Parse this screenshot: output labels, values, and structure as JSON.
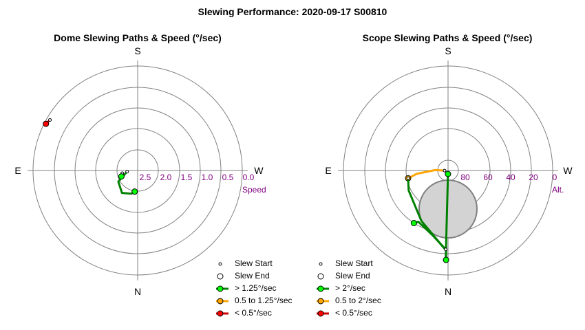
{
  "title": "Slewing Performance: 2020-09-17 S00810",
  "colors": {
    "fast": "#008000",
    "fast_marker": "#00ff00",
    "medium": "#ffa500",
    "slow": "#cc0000",
    "slow_marker": "#ff0000",
    "grid": "#808080",
    "tick": "#800080",
    "obscured_fill": "#d3d3d3",
    "obscured_edge": "#808080"
  },
  "chart_data": [
    {
      "type": "polar",
      "title": "Dome Slewing Paths & Speed (°/sec)",
      "directions": {
        "top": "S",
        "bottom": "N",
        "left": "E",
        "right": "W"
      },
      "radial_axis": {
        "label": "Speed",
        "ticks": [
          "2.5",
          "2.0",
          "1.5",
          "1.0",
          "0.5",
          "0.0"
        ]
      },
      "legend": [
        {
          "label": "Slew Start",
          "marker": "start"
        },
        {
          "label": "Slew End",
          "marker": "end"
        },
        {
          "label": "> 1.25°/sec",
          "marker": "fast"
        },
        {
          "label": "0.5 to 1.25°/sec",
          "marker": "medium"
        },
        {
          "label": "< 0.5°/sec",
          "marker": "slow"
        }
      ],
      "paths": [
        {
          "speed_class": "fast",
          "points": [
            [
              96,
              2.8
            ],
            [
              120,
              2.45
            ],
            [
              145,
              2.3
            ],
            [
              165,
              2.4
            ],
            [
              172,
              2.48
            ]
          ]
        },
        {
          "speed_class": "fast",
          "points": [
            [
              100,
              2.65
            ],
            [
              110,
              2.6
            ]
          ]
        },
        {
          "speed_class": "slow",
          "points": [
            [
              60,
              0.1
            ],
            [
              63,
              0.05
            ]
          ]
        }
      ]
    },
    {
      "type": "polar",
      "title": "Scope Slewing Paths & Speed (°/sec)",
      "directions": {
        "top": "S",
        "bottom": "N",
        "left": "E",
        "right": "W"
      },
      "radial_axis": {
        "label": "Alt.",
        "ticks": [
          "80",
          "60",
          "40",
          "20",
          "0"
        ]
      },
      "obscured_region": {
        "azimuth": 0,
        "altitude": 68,
        "radius_deg": 22
      },
      "legend": [
        {
          "label": "Slew Start",
          "marker": "start"
        },
        {
          "label": "Slew End",
          "marker": "end"
        },
        {
          "label": "> 2°/sec",
          "marker": "fast"
        },
        {
          "label": "0.5 to 2°/sec",
          "marker": "medium"
        },
        {
          "label": "< 0.5°/sec",
          "marker": "slow"
        }
      ],
      "paths": [
        {
          "speed_class": "fast",
          "points": [
            [
              178.5,
              13
            ],
            [
              178.5,
              60
            ],
            [
              179,
              87
            ]
          ]
        },
        {
          "speed_class": "medium",
          "points": [
            [
              91,
              87
            ],
            [
              88,
              79
            ],
            [
              96,
              63
            ],
            [
              101,
              55
            ]
          ]
        },
        {
          "speed_class": "fast",
          "points": [
            [
              101,
              55
            ],
            [
              117,
              52
            ],
            [
              152,
              41
            ],
            [
              178.6,
              21
            ],
            [
              178.7,
              13
            ]
          ]
        },
        {
          "speed_class": "fast",
          "points": [
            [
              178.3,
              22
            ],
            [
              166,
              33
            ],
            [
              150,
              39
            ],
            [
              147,
              36
            ]
          ]
        }
      ]
    }
  ]
}
